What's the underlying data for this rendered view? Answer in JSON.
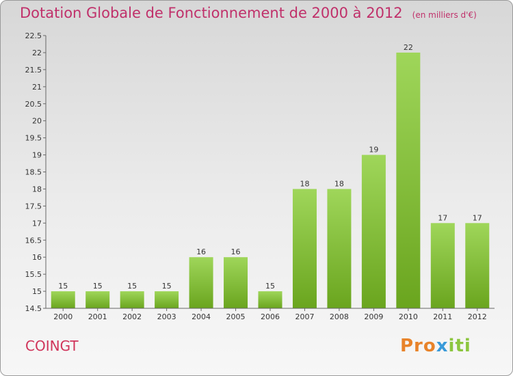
{
  "title": "Dotation Globale de Fonctionnement de 2000 à 2012",
  "subtitle": "(en milliers d'€)",
  "commune": "COINGT",
  "logo": {
    "parts": [
      "Pro",
      "x",
      "iti"
    ],
    "colors": [
      "#e8832a",
      "#3a9ad9",
      "#8cc63f"
    ]
  },
  "colors": {
    "bar_light": "#9fd65a",
    "bar_dark": "#6aa51e",
    "title": "#c0306a",
    "commune": "#d0345a"
  },
  "chart_data": {
    "type": "bar",
    "categories": [
      "2000",
      "2001",
      "2002",
      "2003",
      "2004",
      "2005",
      "2006",
      "2007",
      "2008",
      "2009",
      "2010",
      "2011",
      "2012"
    ],
    "values": [
      15,
      15,
      15,
      15,
      16,
      16,
      15,
      18,
      18,
      19,
      22,
      17,
      17
    ],
    "data_labels": [
      "15",
      "15",
      "15",
      "15",
      "16",
      "16",
      "15",
      "18",
      "18",
      "19",
      "22",
      "17",
      "17"
    ],
    "ylim": [
      14.5,
      22.5
    ],
    "yticks": [
      14.5,
      15,
      15.5,
      16,
      16.5,
      17,
      17.5,
      18,
      18.5,
      19,
      19.5,
      20,
      20.5,
      21,
      21.5,
      22,
      22.5
    ],
    "ytick_labels": [
      "14.5",
      "15",
      "15.5",
      "16",
      "16.5",
      "17",
      "17.5",
      "18",
      "18.5",
      "19",
      "19.5",
      "20",
      "20.5",
      "21",
      "21.5",
      "22",
      "22.5"
    ],
    "grid": false
  }
}
